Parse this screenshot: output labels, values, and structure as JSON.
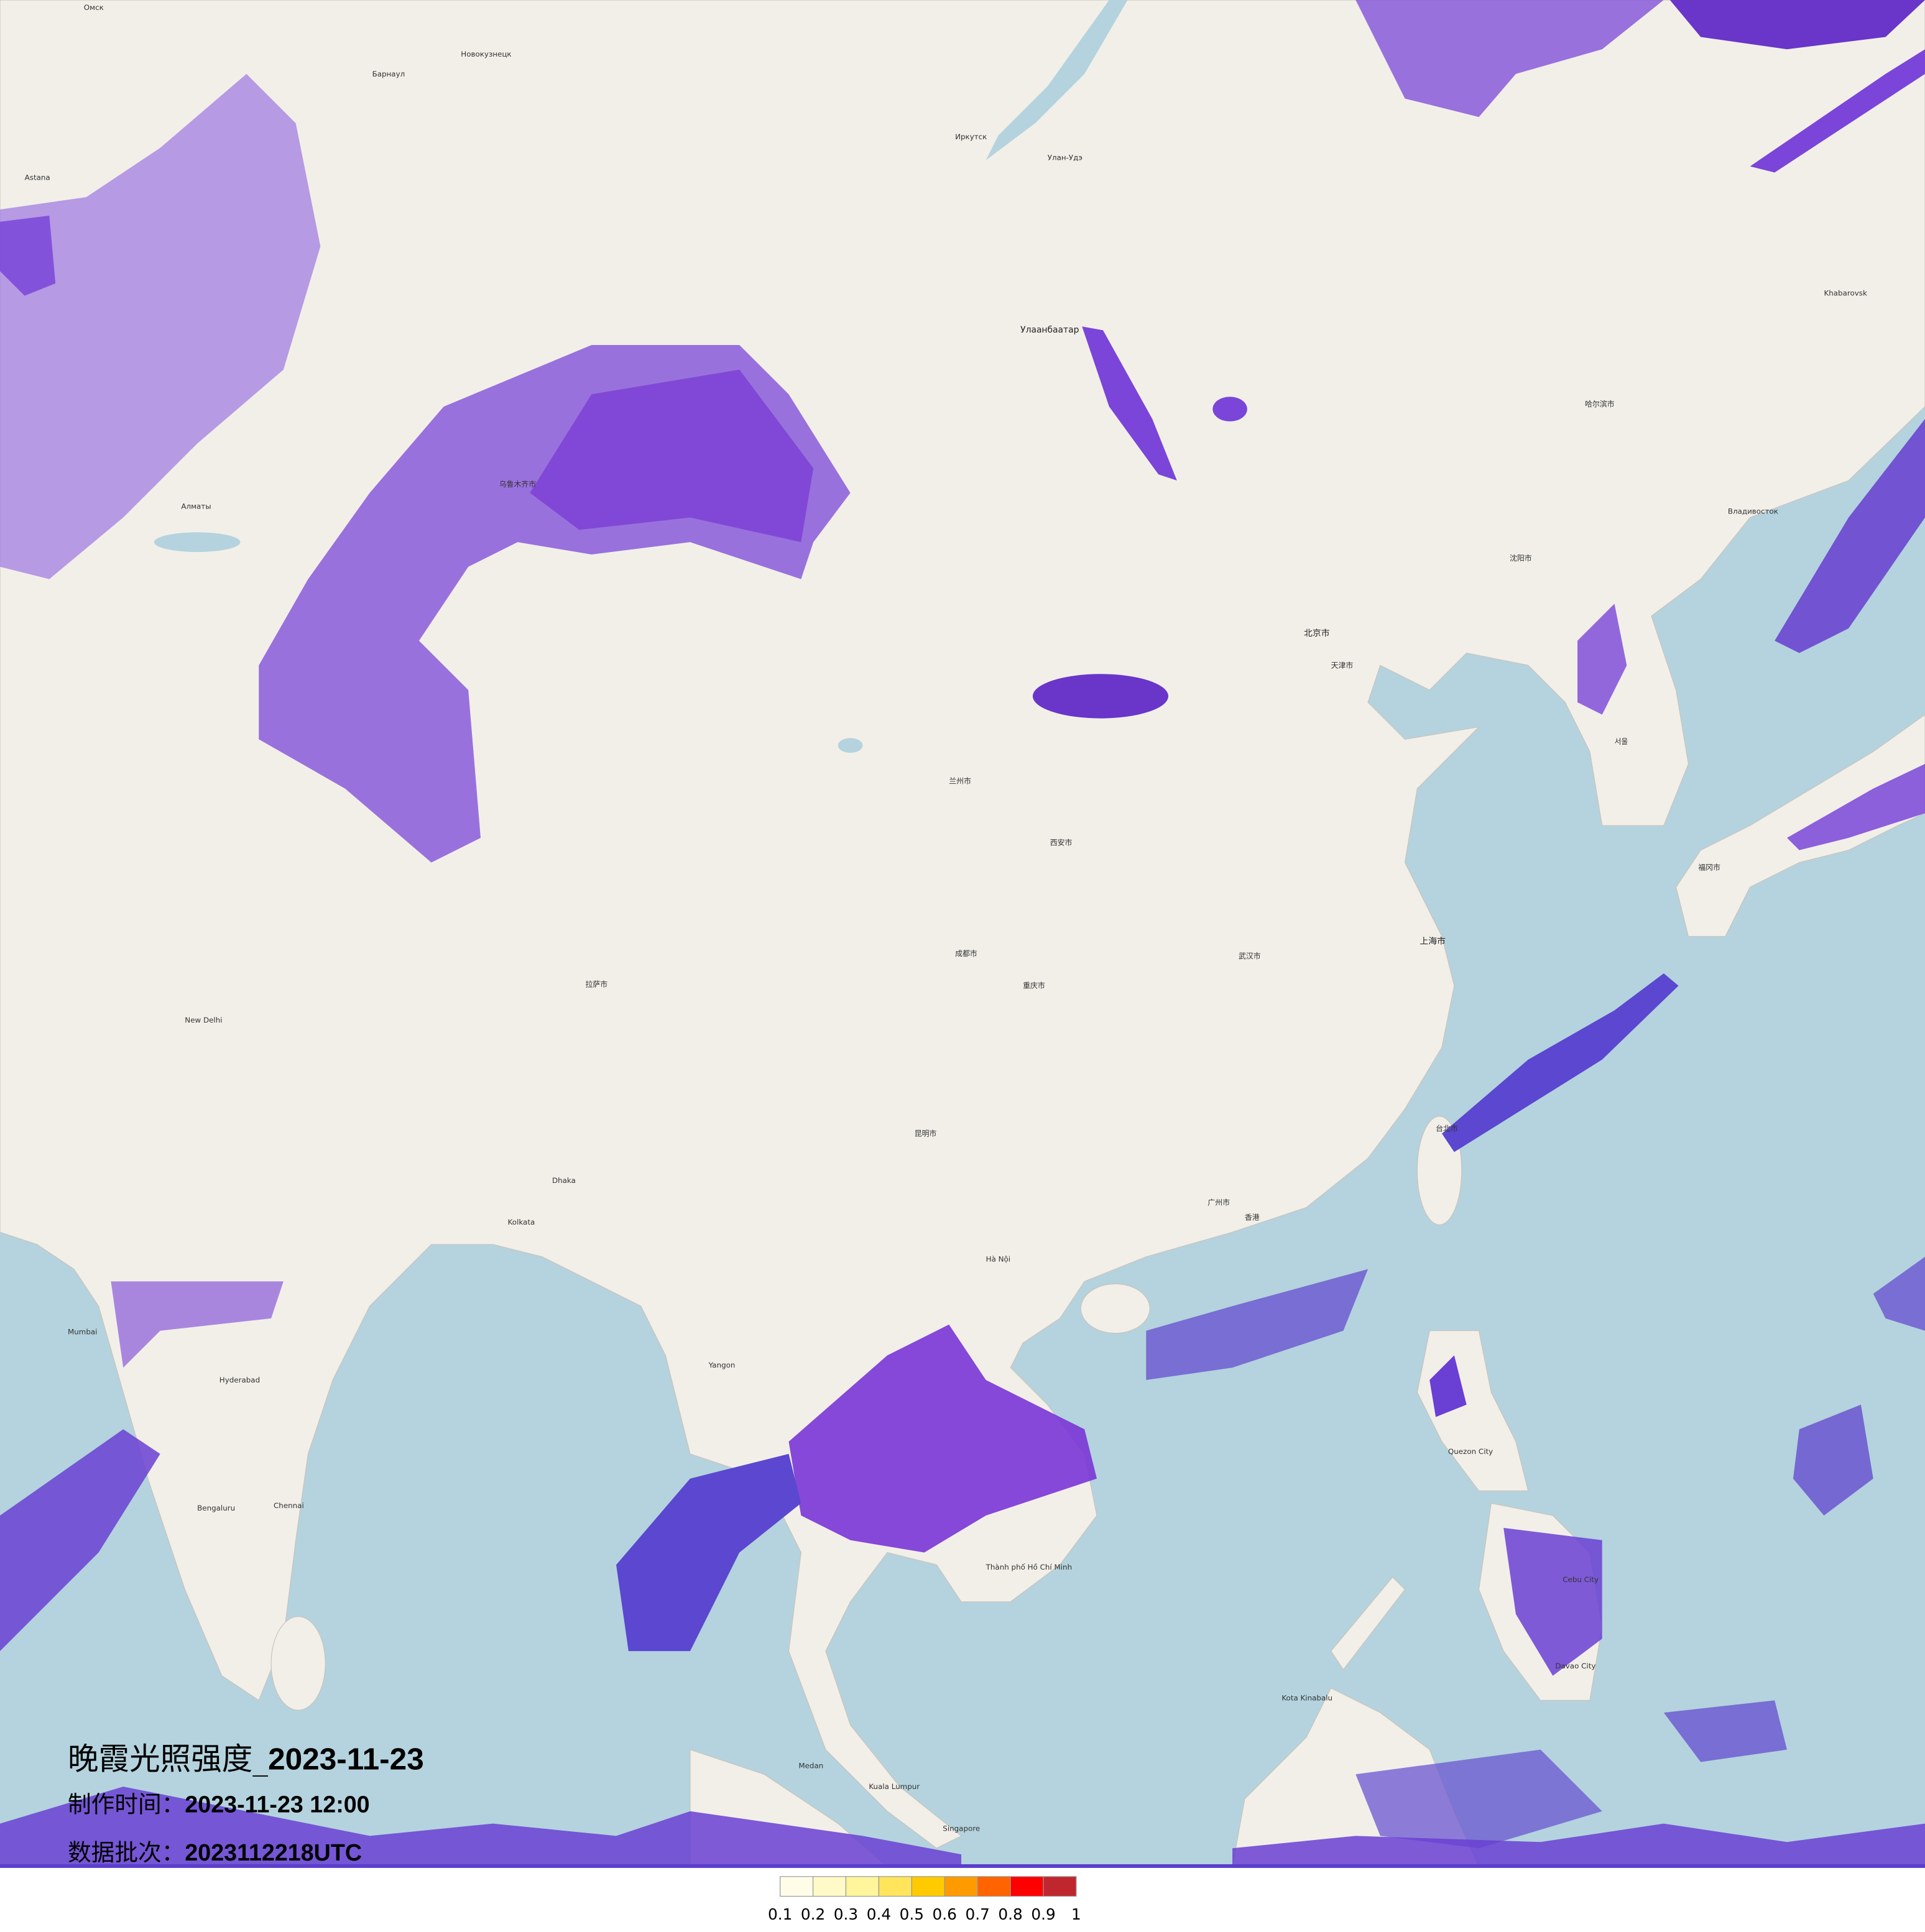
{
  "title": {
    "prefix": "晚霞光照强度_",
    "date": "2023-11-23"
  },
  "production_time": {
    "label": "制作时间：",
    "value": "2023-11-23 12:00"
  },
  "data_batch": {
    "label": "数据批次：",
    "value": "2023112218UTC"
  },
  "legend": {
    "colors": [
      "#fffde8",
      "#fffac8",
      "#fff59a",
      "#ffe45c",
      "#ffcb00",
      "#ff9b00",
      "#ff6400",
      "#ff0000",
      "#c0262e"
    ],
    "labels": [
      "0.1",
      "0.2",
      "0.3",
      "0.4",
      "0.5",
      "0.6",
      "0.7",
      "0.8",
      "0.9",
      "1"
    ]
  },
  "colors": {
    "land": "#f2efe9",
    "sea": "#b4d3de",
    "glow_low": "#c9b6ef",
    "glow_mid": "#9a6fe0",
    "glow_high": "#6a3fd3"
  },
  "cities": [
    "Омск",
    "Новокузнецк",
    "Барнаул",
    "Astana",
    "Иркутск",
    "Улан-Удэ",
    "Улаанбаатар",
    "Алматы",
    "Khabarovsk",
    "Владивосток",
    "北京市",
    "天津市",
    "上海市",
    "武汉市",
    "重庆市",
    "成都市",
    "西安市",
    "广州市",
    "香港",
    "台北市",
    "沈阳市",
    "哈尔滨市",
    "乌鲁木齐市",
    "兰州市",
    "昆明市",
    "拉萨市",
    "서울",
    "福冈市",
    "New Delhi",
    "Kolkata",
    "Mumbai",
    "Hyderabad",
    "Bengaluru",
    "Chennai",
    "Hà Nội",
    "Thành phố Hồ Chí Minh",
    "Kuala Lumpur",
    "Singapore",
    "Medan",
    "Quezon City",
    "Cebu City",
    "Kota Kinabalu",
    "Davao City",
    "Dhaka",
    "Yangon"
  ]
}
